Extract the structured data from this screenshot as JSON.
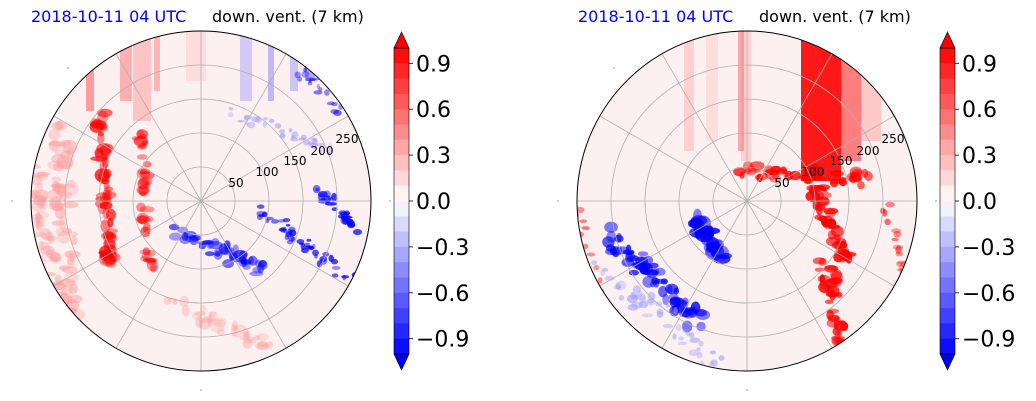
{
  "chart_data": [
    {
      "type": "polar filled contour",
      "title_left": "2018-10-11 04 UTC",
      "title_right": "down. vent. (7 km)",
      "radial_ticks": [
        "50",
        "100",
        "150",
        "200",
        "250"
      ],
      "colorbar": {
        "ticks": [
          "0.9",
          "0.6",
          "0.3",
          "0.0",
          "−0.3",
          "−0.6",
          "−0.9"
        ],
        "levels": [
          -1.0,
          1.0
        ],
        "colormap": "bwr",
        "extend": "both"
      }
    },
    {
      "type": "polar filled contour",
      "title_left": "2018-10-11 04 UTC",
      "title_right": "down. vent. (7 km)",
      "radial_ticks": [
        "50",
        "100",
        "150",
        "200",
        "250"
      ],
      "colorbar": {
        "ticks": [
          "0.9",
          "0.6",
          "0.3",
          "0.0",
          "−0.3",
          "−0.6",
          "−0.9"
        ],
        "levels": [
          -1.0,
          1.0
        ],
        "colormap": "bwr",
        "extend": "both"
      }
    }
  ],
  "colors": {
    "positive": "#ff0000",
    "negative": "#0000ff",
    "neutral": "#ffffff"
  }
}
